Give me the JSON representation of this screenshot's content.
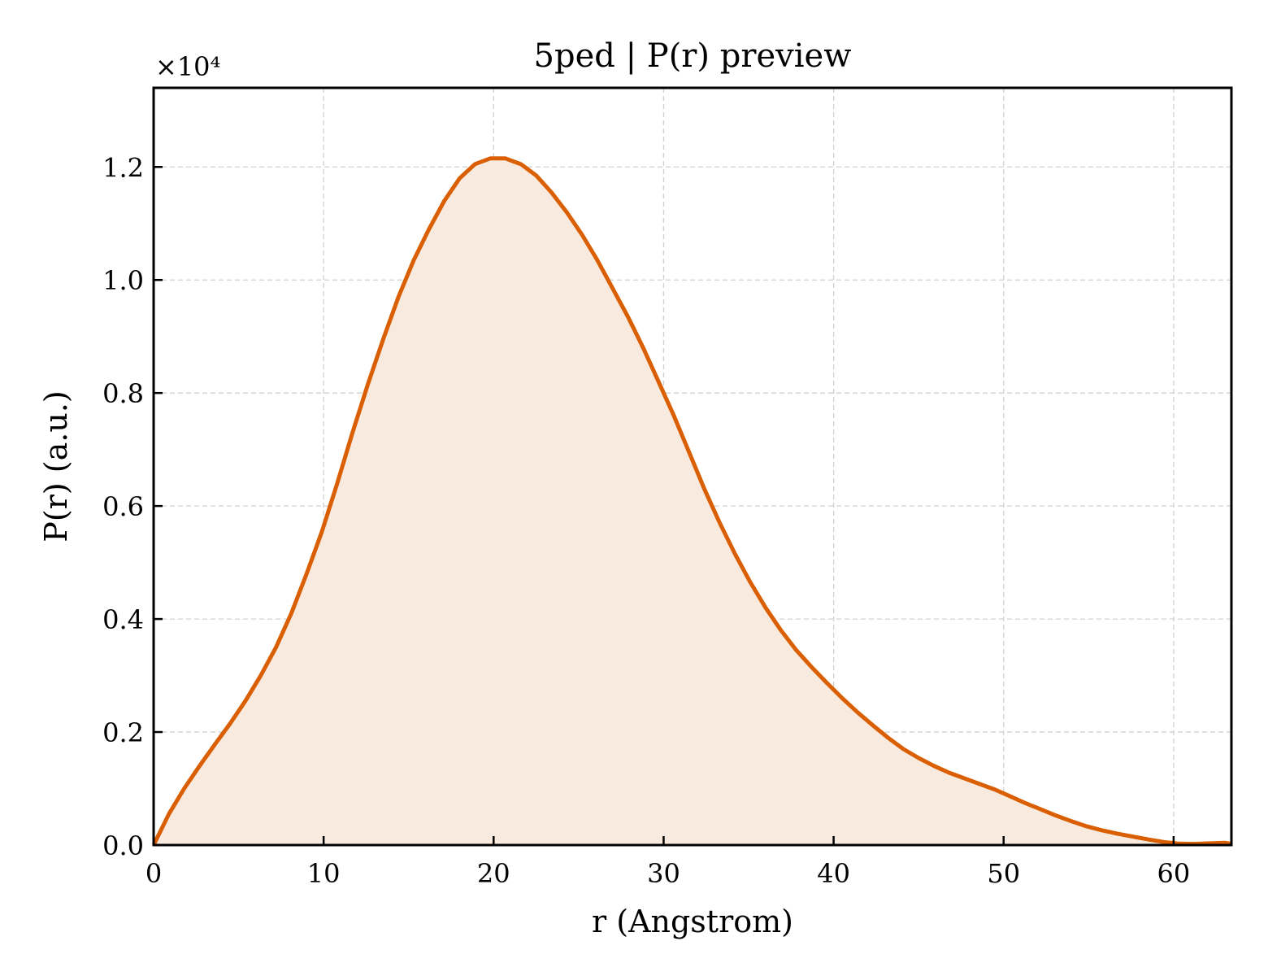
{
  "chart_data": {
    "type": "area",
    "title": "5ped | P(r) preview",
    "xlabel": "r (Angstrom)",
    "ylabel": "P(r) (a.u.)",
    "y_multiplier_label": "×10⁴",
    "y_scale": 10000,
    "xlim": [
      0,
      63.4
    ],
    "ylim": [
      0,
      13400
    ],
    "xticks": [
      0,
      10,
      20,
      30,
      40,
      50,
      60
    ],
    "xtick_labels": [
      "0",
      "10",
      "20",
      "30",
      "40",
      "50",
      "60"
    ],
    "yticks": [
      0,
      2000,
      4000,
      6000,
      8000,
      10000,
      12000
    ],
    "ytick_labels": [
      "0.0",
      "0.2",
      "0.4",
      "0.6",
      "0.8",
      "1.0",
      "1.2"
    ],
    "grid": true,
    "line_color": "#d95f02",
    "fill_color": "#f9eadf",
    "series": [
      {
        "x": [
          0,
          0.9,
          1.8,
          2.7,
          3.6,
          4.5,
          5.4,
          6.3,
          7.2,
          8.1,
          9.0,
          9.9,
          10.8,
          11.7,
          12.6,
          13.5,
          14.4,
          15.3,
          16.2,
          17.1,
          18.0,
          18.9,
          19.8,
          20.7,
          21.6,
          22.5,
          23.4,
          24.3,
          25.2,
          26.1,
          27.0,
          27.9,
          28.8,
          29.7,
          30.6,
          31.5,
          32.4,
          33.3,
          34.2,
          35.1,
          36.0,
          36.9,
          37.8,
          38.7,
          39.6,
          40.5,
          41.4,
          42.3,
          43.2,
          44.1,
          45.0,
          45.9,
          46.8,
          47.7,
          48.6,
          49.5,
          50.4,
          51.3,
          52.2,
          53.1,
          54.0,
          54.9,
          55.8,
          56.7,
          57.6,
          58.5,
          59.4,
          60.3,
          61.2,
          62.1,
          63.0,
          63.4
        ],
        "y": [
          0,
          550,
          1000,
          1400,
          1780,
          2150,
          2550,
          3000,
          3500,
          4100,
          4800,
          5550,
          6400,
          7300,
          8150,
          8950,
          9700,
          10350,
          10900,
          11400,
          11800,
          12050,
          12150,
          12150,
          12050,
          11850,
          11550,
          11200,
          10800,
          10350,
          9850,
          9350,
          8800,
          8200,
          7600,
          6950,
          6300,
          5700,
          5150,
          4650,
          4200,
          3800,
          3450,
          3150,
          2870,
          2600,
          2350,
          2120,
          1900,
          1700,
          1540,
          1400,
          1280,
          1180,
          1080,
          980,
          860,
          740,
          630,
          520,
          420,
          330,
          260,
          200,
          150,
          100,
          55,
          25,
          20,
          30,
          40,
          20
        ]
      }
    ]
  }
}
